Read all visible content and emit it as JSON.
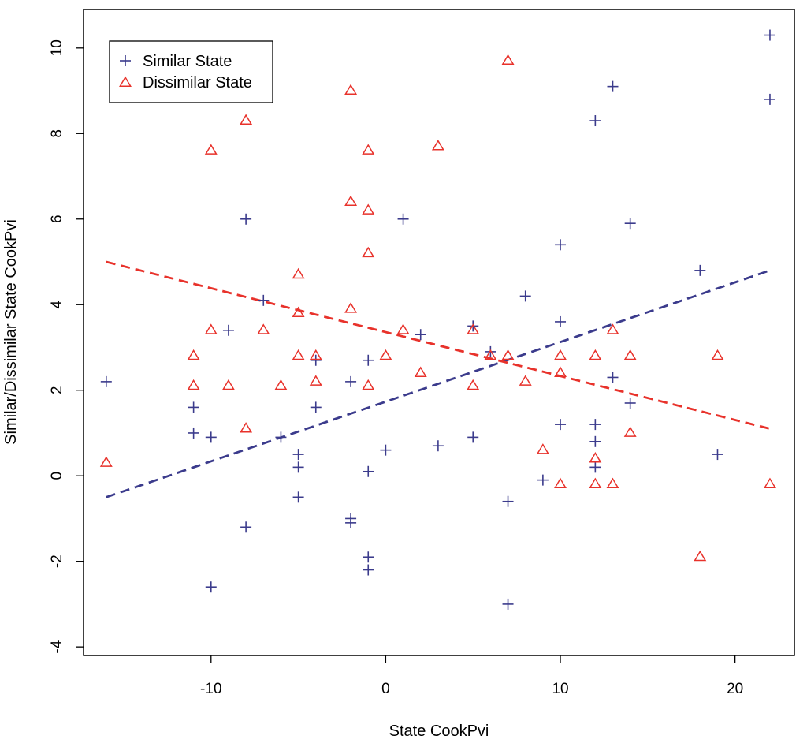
{
  "chart_data": {
    "type": "scatter",
    "xlabel": "State CookPvi",
    "ylabel": "Similar/Dissimilar State CookPvi",
    "xlim": [
      -17.3,
      23.4
    ],
    "ylim": [
      -4.2,
      10.9
    ],
    "x_ticks": [
      -10,
      0,
      10,
      20
    ],
    "y_ticks": [
      -4,
      -2,
      0,
      2,
      4,
      6,
      8,
      10
    ],
    "grid": false,
    "legend_position": "top-left",
    "series": [
      {
        "name": "Similar State",
        "marker": "plus",
        "color": "#3b3b8c",
        "points": [
          [
            -16,
            2.2
          ],
          [
            -11,
            1.6
          ],
          [
            -11,
            1.0
          ],
          [
            -10,
            0.9
          ],
          [
            -10,
            -2.6
          ],
          [
            -9,
            3.4
          ],
          [
            -8,
            6.0
          ],
          [
            -8,
            -1.2
          ],
          [
            -7,
            4.1
          ],
          [
            -6,
            0.9
          ],
          [
            -5,
            0.5
          ],
          [
            -5,
            0.2
          ],
          [
            -5,
            -0.5
          ],
          [
            -4,
            2.7
          ],
          [
            -4,
            1.6
          ],
          [
            -2,
            2.2
          ],
          [
            -2,
            -1.0
          ],
          [
            -2,
            -1.1
          ],
          [
            -1,
            2.7
          ],
          [
            -1,
            0.1
          ],
          [
            -1,
            -1.9
          ],
          [
            -1,
            -2.2
          ],
          [
            0,
            0.6
          ],
          [
            1,
            6.0
          ],
          [
            2,
            3.3
          ],
          [
            3,
            0.7
          ],
          [
            5,
            3.5
          ],
          [
            5,
            0.9
          ],
          [
            6,
            2.9
          ],
          [
            7,
            -0.6
          ],
          [
            7,
            -3.0
          ],
          [
            8,
            4.2
          ],
          [
            9,
            -0.1
          ],
          [
            10,
            5.4
          ],
          [
            10,
            3.6
          ],
          [
            10,
            1.2
          ],
          [
            12,
            8.3
          ],
          [
            12,
            1.2
          ],
          [
            12,
            0.8
          ],
          [
            12,
            0.2
          ],
          [
            13,
            9.1
          ],
          [
            13,
            2.3
          ],
          [
            14,
            5.9
          ],
          [
            14,
            1.7
          ],
          [
            18,
            4.8
          ],
          [
            19,
            0.5
          ],
          [
            22,
            10.3
          ],
          [
            22,
            8.8
          ]
        ],
        "fit": {
          "x": [
            -16,
            22
          ],
          "y": [
            -0.5,
            4.8
          ]
        }
      },
      {
        "name": "Dissimilar State",
        "marker": "triangle",
        "color": "#e8322b",
        "points": [
          [
            -16,
            0.3
          ],
          [
            -11,
            2.8
          ],
          [
            -11,
            2.1
          ],
          [
            -10,
            7.6
          ],
          [
            -10,
            3.4
          ],
          [
            -9,
            2.1
          ],
          [
            -8,
            8.3
          ],
          [
            -8,
            1.1
          ],
          [
            -7,
            3.4
          ],
          [
            -6,
            2.1
          ],
          [
            -5,
            4.7
          ],
          [
            -5,
            3.8
          ],
          [
            -5,
            2.8
          ],
          [
            -4,
            2.8
          ],
          [
            -4,
            2.2
          ],
          [
            -2,
            9.0
          ],
          [
            -2,
            6.4
          ],
          [
            -2,
            3.9
          ],
          [
            -1,
            7.6
          ],
          [
            -1,
            6.2
          ],
          [
            -1,
            5.2
          ],
          [
            -1,
            2.1
          ],
          [
            0,
            2.8
          ],
          [
            1,
            3.4
          ],
          [
            2,
            2.4
          ],
          [
            3,
            7.7
          ],
          [
            5,
            3.4
          ],
          [
            5,
            2.1
          ],
          [
            6,
            2.8
          ],
          [
            7,
            9.7
          ],
          [
            7,
            2.8
          ],
          [
            8,
            2.2
          ],
          [
            9,
            0.6
          ],
          [
            10,
            2.8
          ],
          [
            10,
            2.4
          ],
          [
            10,
            -0.2
          ],
          [
            12,
            2.8
          ],
          [
            12,
            0.4
          ],
          [
            12,
            -0.2
          ],
          [
            13,
            3.4
          ],
          [
            13,
            -0.2
          ],
          [
            14,
            2.8
          ],
          [
            14,
            1.0
          ],
          [
            18,
            -1.9
          ],
          [
            19,
            2.8
          ],
          [
            22,
            -0.2
          ]
        ],
        "fit": {
          "x": [
            -16,
            22
          ],
          "y": [
            5.0,
            1.1
          ]
        }
      }
    ]
  }
}
